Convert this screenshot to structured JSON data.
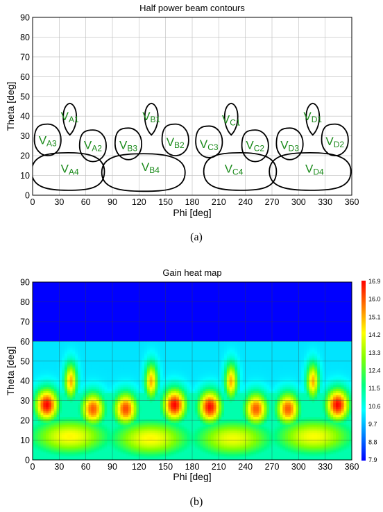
{
  "chart_data": [
    {
      "type": "contour",
      "title": "Half power beam contours",
      "xlabel": "Phi [deg]",
      "ylabel": "Theta [deg]",
      "xlim": [
        0,
        360
      ],
      "ylim": [
        0,
        90
      ],
      "xticks": [
        0,
        30,
        60,
        90,
        120,
        150,
        180,
        210,
        240,
        270,
        300,
        330,
        360
      ],
      "yticks": [
        0,
        10,
        20,
        30,
        40,
        50,
        60,
        70,
        80,
        90
      ],
      "grid": true,
      "caption": "(a)",
      "contour_color": "#000000",
      "label_color": "#1a8a1a",
      "beams": [
        {
          "main": "V",
          "sub": "A1",
          "phi": 42,
          "theta": 38.5,
          "label_phi": 42,
          "label_theta": 40,
          "width_deg": 18,
          "height_deg": 16,
          "shape": "drop"
        },
        {
          "main": "V",
          "sub": "A2",
          "phi": 68,
          "theta": 25,
          "label_phi": 68,
          "label_theta": 25.5,
          "width_deg": 30,
          "height_deg": 16,
          "shape": "blob"
        },
        {
          "main": "V",
          "sub": "A3",
          "phi": 17,
          "theta": 28,
          "label_phi": 17,
          "label_theta": 28,
          "width_deg": 30,
          "height_deg": 16,
          "shape": "blob"
        },
        {
          "main": "V",
          "sub": "A4",
          "phi": 40,
          "theta": 12,
          "label_phi": 42,
          "label_theta": 13.5,
          "width_deg": 82,
          "height_deg": 19,
          "shape": "wide"
        },
        {
          "main": "V",
          "sub": "B1",
          "phi": 134,
          "theta": 38.5,
          "label_phi": 134,
          "label_theta": 40,
          "width_deg": 18,
          "height_deg": 16,
          "shape": "drop"
        },
        {
          "main": "V",
          "sub": "B2",
          "phi": 161,
          "theta": 28,
          "label_phi": 161,
          "label_theta": 27,
          "width_deg": 30,
          "height_deg": 16,
          "shape": "blob"
        },
        {
          "main": "V",
          "sub": "B3",
          "phi": 108,
          "theta": 26,
          "label_phi": 108,
          "label_theta": 25.5,
          "width_deg": 30,
          "height_deg": 16,
          "shape": "blob"
        },
        {
          "main": "V",
          "sub": "B4",
          "phi": 125,
          "theta": 11.5,
          "label_phi": 133,
          "label_theta": 14.5,
          "width_deg": 94,
          "height_deg": 19,
          "shape": "wide"
        },
        {
          "main": "V",
          "sub": "C1",
          "phi": 224,
          "theta": 38.5,
          "label_phi": 224,
          "label_theta": 38.5,
          "width_deg": 18,
          "height_deg": 16,
          "shape": "drop"
        },
        {
          "main": "V",
          "sub": "C2",
          "phi": 251,
          "theta": 25,
          "label_phi": 251,
          "label_theta": 25.5,
          "width_deg": 30,
          "height_deg": 16,
          "shape": "blob"
        },
        {
          "main": "V",
          "sub": "C3",
          "phi": 199,
          "theta": 27,
          "label_phi": 199,
          "label_theta": 26,
          "width_deg": 30,
          "height_deg": 16,
          "shape": "blob"
        },
        {
          "main": "V",
          "sub": "C4",
          "phi": 234,
          "theta": 12,
          "label_phi": 227,
          "label_theta": 13.5,
          "width_deg": 82,
          "height_deg": 19,
          "shape": "wide"
        },
        {
          "main": "V",
          "sub": "D1",
          "phi": 316,
          "theta": 38.5,
          "label_phi": 316,
          "label_theta": 40,
          "width_deg": 18,
          "height_deg": 16,
          "shape": "drop"
        },
        {
          "main": "V",
          "sub": "D2",
          "phi": 341,
          "theta": 28,
          "label_phi": 341,
          "label_theta": 27.5,
          "width_deg": 30,
          "height_deg": 16,
          "shape": "blob"
        },
        {
          "main": "V",
          "sub": "D3",
          "phi": 290,
          "theta": 26,
          "label_phi": 290,
          "label_theta": 25.5,
          "width_deg": 30,
          "height_deg": 16,
          "shape": "blob"
        },
        {
          "main": "V",
          "sub": "D4",
          "phi": 313,
          "theta": 12,
          "label_phi": 318,
          "label_theta": 13.5,
          "width_deg": 92,
          "height_deg": 19,
          "shape": "wide"
        }
      ]
    },
    {
      "type": "heatmap",
      "title": "Gain heat map",
      "xlabel": "Phi [deg]",
      "ylabel": "Theta [deg]",
      "xlim": [
        0,
        360
      ],
      "ylim": [
        0,
        90
      ],
      "xticks": [
        0,
        30,
        60,
        90,
        120,
        150,
        180,
        210,
        240,
        270,
        300,
        330,
        360
      ],
      "yticks": [
        0,
        10,
        20,
        30,
        40,
        50,
        60,
        70,
        80,
        90
      ],
      "grid": true,
      "caption": "(b)",
      "colorbar": {
        "ticks": [
          "16.9",
          "16.0",
          "15.1",
          "14.2",
          "13.3",
          "12.4",
          "11.5",
          "10.6",
          "9.7",
          "8.8",
          "7.9"
        ],
        "range": [
          7.9,
          16.9
        ],
        "colors": [
          "#0000ff",
          "#0080ff",
          "#00ffff",
          "#00ff80",
          "#80ff00",
          "#ffff00",
          "#ff8000",
          "#ff0000"
        ]
      },
      "background_gain": 7.9,
      "lobes": [
        {
          "name": "A1",
          "phi": 43,
          "theta": 40,
          "peak": 15.1
        },
        {
          "name": "B1",
          "phi": 134,
          "theta": 40,
          "peak": 15.1
        },
        {
          "name": "C1",
          "phi": 224,
          "theta": 40,
          "peak": 15.1
        },
        {
          "name": "D1",
          "phi": 316,
          "theta": 40,
          "peak": 15.1
        },
        {
          "name": "A3",
          "phi": 16,
          "theta": 28,
          "peak": 16.9
        },
        {
          "name": "A2",
          "phi": 68,
          "theta": 26,
          "peak": 16.0
        },
        {
          "name": "B3",
          "phi": 105,
          "theta": 26,
          "peak": 16.2
        },
        {
          "name": "B2",
          "phi": 160,
          "theta": 28,
          "peak": 16.9
        },
        {
          "name": "C3",
          "phi": 200,
          "theta": 27,
          "peak": 16.8
        },
        {
          "name": "C2",
          "phi": 252,
          "theta": 26,
          "peak": 16.0
        },
        {
          "name": "D3",
          "phi": 288,
          "theta": 26,
          "peak": 16.0
        },
        {
          "name": "D2",
          "phi": 344,
          "theta": 28,
          "peak": 16.9
        },
        {
          "name": "A4",
          "phi": 42,
          "theta": 12,
          "peak": 14.4
        },
        {
          "name": "B4",
          "phi": 133,
          "theta": 11,
          "peak": 14.4
        },
        {
          "name": "C4",
          "phi": 226,
          "theta": 11,
          "peak": 14.2
        },
        {
          "name": "D4",
          "phi": 317,
          "theta": 12,
          "peak": 14.3
        }
      ]
    }
  ]
}
